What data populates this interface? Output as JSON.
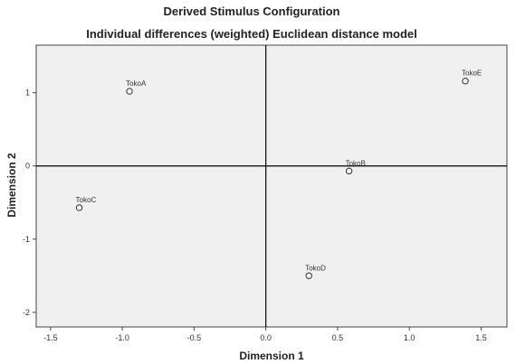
{
  "colors": {
    "plot_background": "#f0f0f0",
    "plot_border": "#444444",
    "axis_line": "#000000",
    "marker_stroke": "#333333",
    "text": "#222222"
  },
  "chart_data": {
    "type": "scatter",
    "title": "Derived Stimulus Configuration",
    "subtitle": "Individual differences (weighted) Euclidean distance model",
    "xlabel": "Dimension 1",
    "ylabel": "Dimension 2",
    "xlim": [
      -1.6,
      1.68
    ],
    "ylim": [
      -2.2,
      1.65
    ],
    "xticks": [
      -1.5,
      -1.0,
      -0.5,
      0.0,
      0.5,
      1.0,
      1.5
    ],
    "xtick_labels": [
      "-1.5",
      "-1.0",
      "-0.5",
      "0.0",
      "0.5",
      "1.0",
      "1.5"
    ],
    "yticks": [
      1,
      0,
      -1,
      -2
    ],
    "ytick_labels": [
      "1",
      "0",
      "-1",
      "-2"
    ],
    "grid": false,
    "legend": "none",
    "marker": "open-circle",
    "points": [
      {
        "label": "TokoA",
        "x": -0.95,
        "y": 1.02
      },
      {
        "label": "TokoE",
        "x": 1.39,
        "y": 1.16
      },
      {
        "label": "TokoB",
        "x": 0.58,
        "y": -0.07
      },
      {
        "label": "TokoC",
        "x": -1.3,
        "y": -0.57
      },
      {
        "label": "TokoD",
        "x": 0.3,
        "y": -1.5
      }
    ]
  }
}
